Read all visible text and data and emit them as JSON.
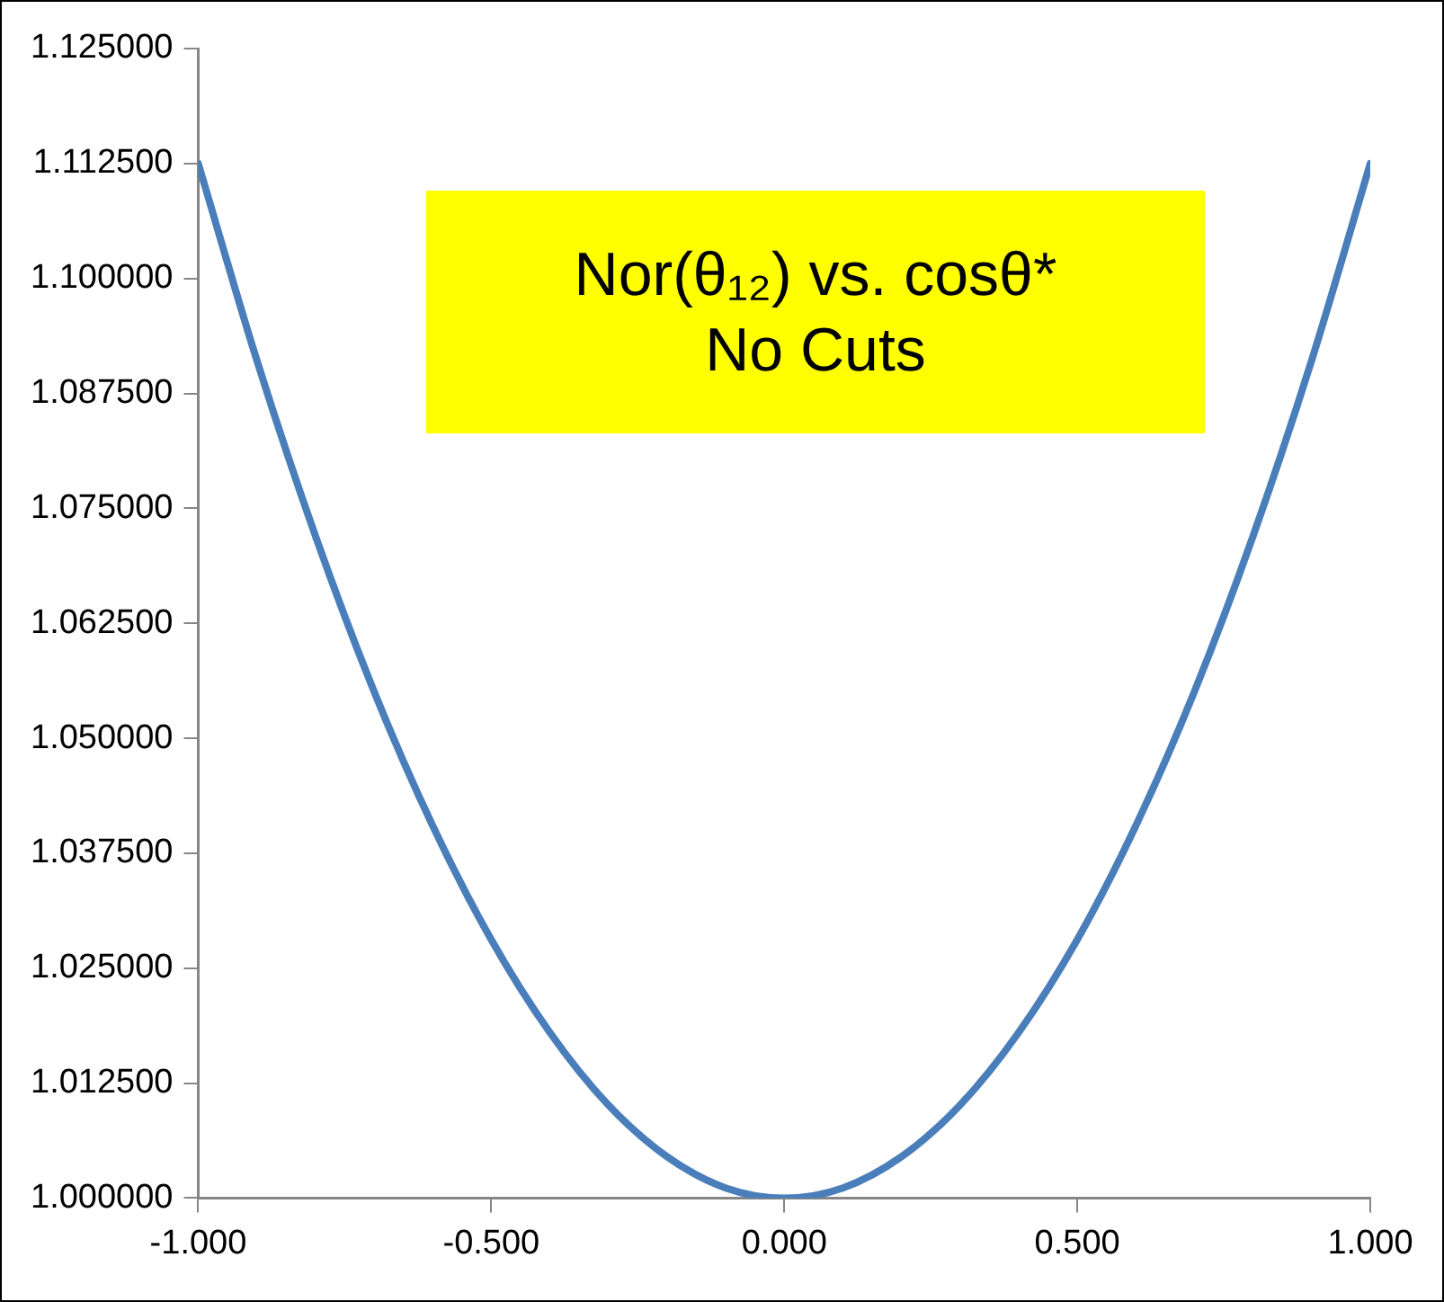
{
  "chart_data": {
    "type": "line",
    "title": "Nor(θ₁₂) vs. cosθ*",
    "subtitle": "No Cuts",
    "x": [
      -1,
      -0.9,
      -0.8,
      -0.7,
      -0.6,
      -0.5,
      -0.4,
      -0.3,
      -0.2,
      -0.1,
      0,
      0.1,
      0.2,
      0.3,
      0.4,
      0.5,
      0.6,
      0.7,
      0.8,
      0.9,
      1
    ],
    "series": [
      {
        "color": "#4a7ebb",
        "values": [
          1.1125,
          1.0911,
          1.072,
          1.0551,
          1.0405,
          1.0281,
          1.018,
          1.0101,
          1.0045,
          1.0011,
          1.0,
          1.0011,
          1.0045,
          1.0101,
          1.018,
          1.0281,
          1.0405,
          1.0551,
          1.072,
          1.0911,
          1.1125
        ]
      }
    ],
    "xlim": [
      -1,
      1
    ],
    "xticks": [
      {
        "value": -1,
        "label": "-1.000"
      },
      {
        "value": -0.5,
        "label": "-0.500"
      },
      {
        "value": 0,
        "label": "0.000"
      },
      {
        "value": 0.5,
        "label": "0.500"
      },
      {
        "value": 1,
        "label": "1.000"
      }
    ],
    "ylim": [
      1,
      1.125
    ],
    "yticks": [
      {
        "value": 1,
        "label": "1.000000"
      },
      {
        "value": 1.0125,
        "label": "1.012500"
      },
      {
        "value": 1.025,
        "label": "1.025000"
      },
      {
        "value": 1.0375,
        "label": "1.037500"
      },
      {
        "value": 1.05,
        "label": "1.050000"
      },
      {
        "value": 1.0625,
        "label": "1.062500"
      },
      {
        "value": 1.075,
        "label": "1.075000"
      },
      {
        "value": 1.0875,
        "label": "1.087500"
      },
      {
        "value": 1.1,
        "label": "1.100000"
      },
      {
        "value": 1.1125,
        "label": "1.112500"
      },
      {
        "value": 1.125,
        "label": "1.125000"
      }
    ],
    "marker": "none",
    "line_style": "solid",
    "legend": false,
    "grid": false
  }
}
